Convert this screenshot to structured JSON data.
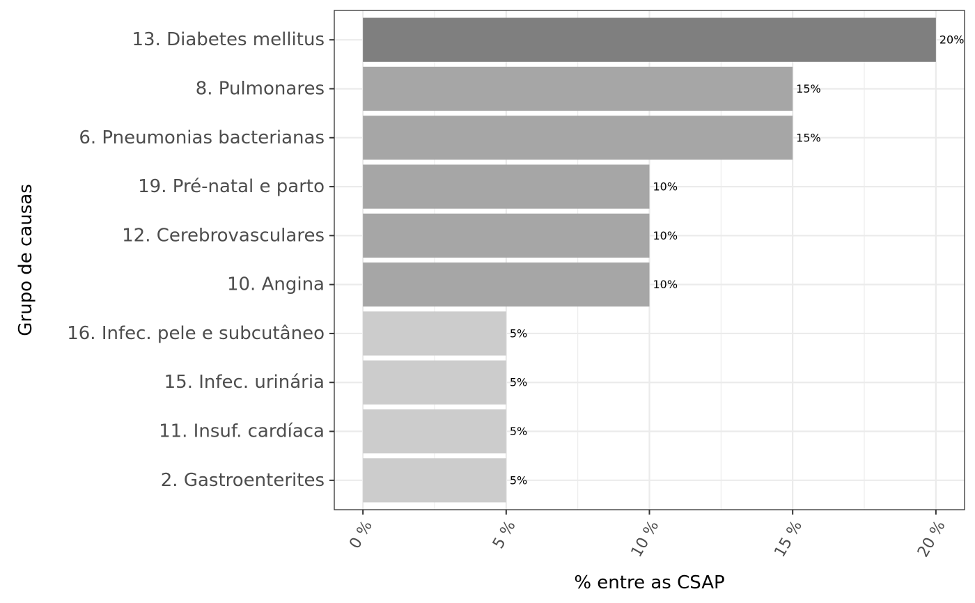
{
  "chart_data": {
    "type": "bar",
    "orientation": "horizontal",
    "categories": [
      "13. Diabetes mellitus",
      "8. Pulmonares",
      "6. Pneumonias bacterianas",
      "19. Pré-natal e parto",
      "12. Cerebrovasculares",
      "10. Angina",
      "16. Infec. pele e subcutâneo",
      "15. Infec. urinária",
      "11. Insuf. cardíaca",
      "2. Gastroenterites"
    ],
    "values": [
      20,
      15,
      15,
      10,
      10,
      10,
      5,
      5,
      5,
      5
    ],
    "data_labels": [
      "20%",
      "15%",
      "15%",
      "10%",
      "10%",
      "10%",
      "5%",
      "5%",
      "5%",
      "5%"
    ],
    "bar_colors": [
      "#7f7f7f",
      "#a6a6a6",
      "#a6a6a6",
      "#a6a6a6",
      "#a6a6a6",
      "#a6a6a6",
      "#cccccc",
      "#cccccc",
      "#cccccc",
      "#cccccc"
    ],
    "xlabel": "% entre as CSAP",
    "ylabel": "Grupo de causas",
    "xlim": [
      -1,
      21
    ],
    "xticks": [
      0,
      5,
      10,
      15,
      20
    ],
    "xtick_labels": [
      "0 %",
      "5 %",
      "10 %",
      "15 %",
      "20 %"
    ],
    "grid": true,
    "theme": "bw"
  }
}
